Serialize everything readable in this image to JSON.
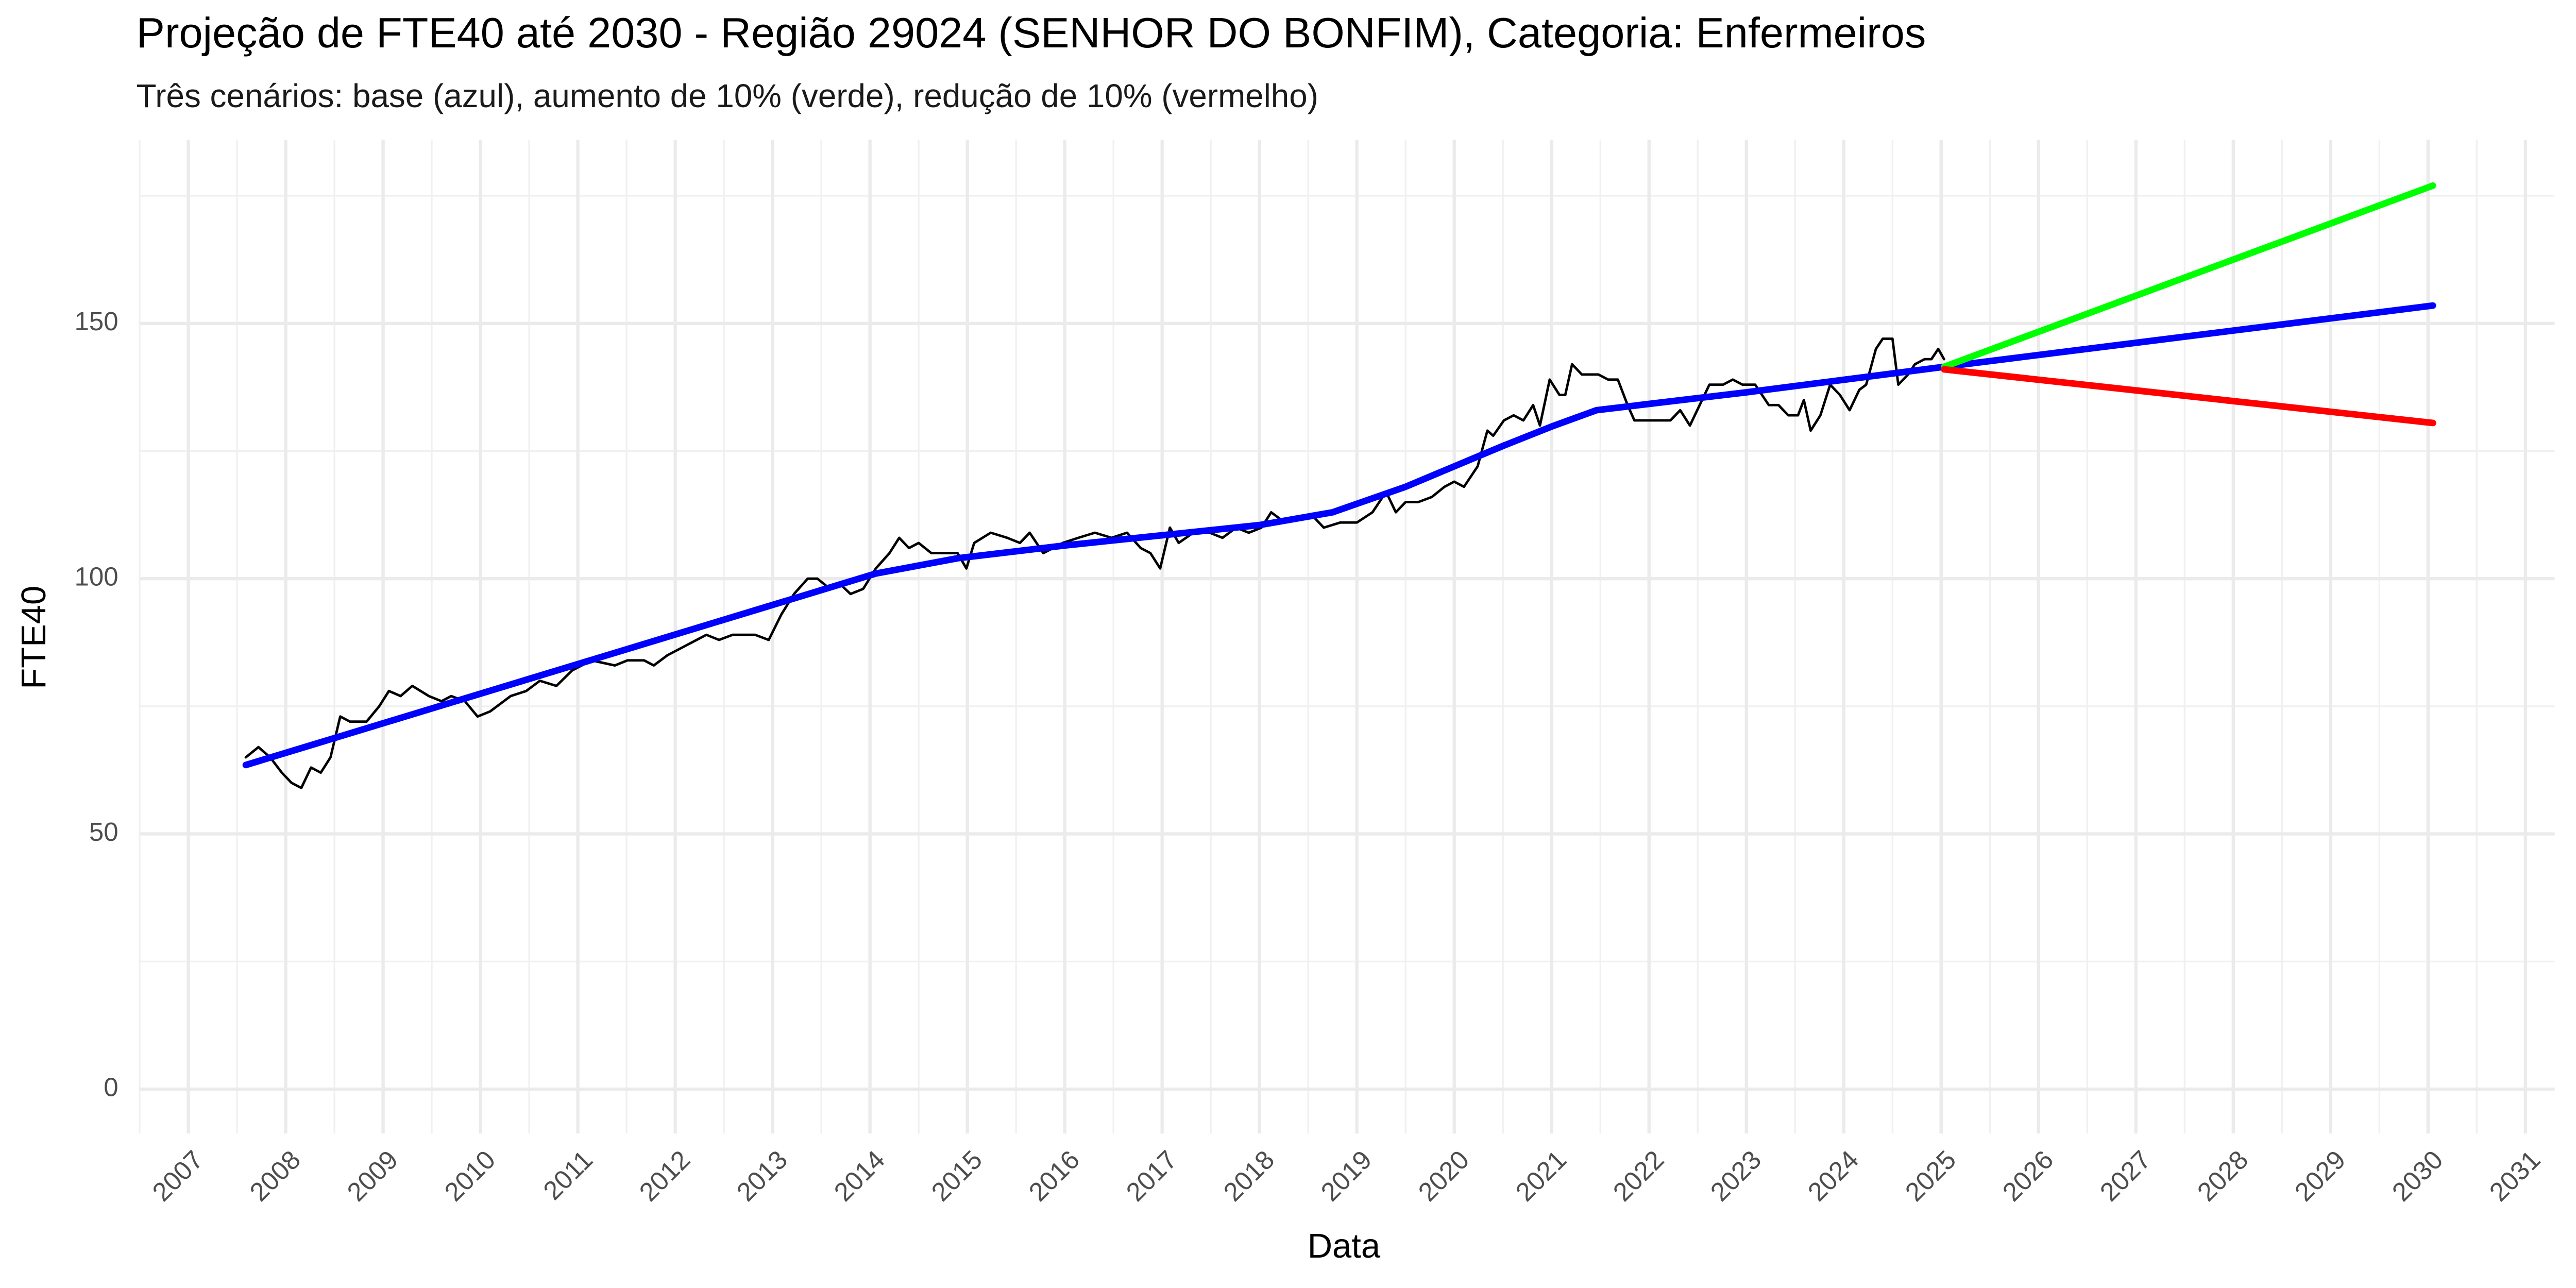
{
  "chart_data": {
    "type": "line",
    "title": "Projeção de FTE40 até 2030 - Região 29024 (SENHOR DO BONFIM), Categoria: Enfermeiros",
    "subtitle": "Três cenários: base (azul), aumento de 10% (verde), redução de 10% (vermelho)",
    "x_label": "Data",
    "y_label": "FTE40",
    "xlim": [
      2006.5,
      2031.3
    ],
    "ylim": [
      -8.7,
      186
    ],
    "xticks": [
      2007,
      2008,
      2009,
      2010,
      2011,
      2012,
      2013,
      2014,
      2015,
      2016,
      2017,
      2018,
      2019,
      2020,
      2021,
      2022,
      2023,
      2024,
      2025,
      2026,
      2027,
      2028,
      2029,
      2030,
      2031
    ],
    "yticks": [
      0,
      50,
      100,
      150
    ],
    "grid": true,
    "series": [
      {
        "color": "#000000",
        "width": 1.5,
        "x": [
          2007.59,
          2007.72,
          2007.84,
          2007.96,
          2008.06,
          2008.16,
          2008.26,
          2008.36,
          2008.46,
          2008.56,
          2008.66,
          2008.83,
          2008.96,
          2009.06,
          2009.18,
          2009.3,
          2009.47,
          2009.6,
          2009.7,
          2009.84,
          2009.97,
          2010.1,
          2010.31,
          2010.47,
          2010.61,
          2010.78,
          2010.94,
          2011.14,
          2011.38,
          2011.51,
          2011.68,
          2011.78,
          2011.92,
          2012.12,
          2012.32,
          2012.45,
          2012.59,
          2012.82,
          2012.96,
          2013.09,
          2013.22,
          2013.36,
          2013.46,
          2013.59,
          2013.69,
          2013.8,
          2013.93,
          2014.06,
          2014.2,
          2014.3,
          2014.4,
          2014.5,
          2014.63,
          2014.77,
          2014.9,
          2014.99,
          2015.07,
          2015.24,
          2015.41,
          2015.54,
          2015.64,
          2015.78,
          2015.98,
          2016.14,
          2016.31,
          2016.48,
          2016.64,
          2016.78,
          2016.88,
          2016.98,
          2017.08,
          2017.17,
          2017.32,
          2017.49,
          2017.62,
          2017.76,
          2017.89,
          2018.02,
          2018.12,
          2018.26,
          2018.43,
          2018.56,
          2018.66,
          2018.83,
          2019.0,
          2019.16,
          2019.3,
          2019.4,
          2019.5,
          2019.63,
          2019.77,
          2019.9,
          2020.0,
          2020.1,
          2020.24,
          2020.34,
          2020.4,
          2020.51,
          2020.61,
          2020.71,
          2020.81,
          2020.88,
          2020.98,
          2021.08,
          2021.14,
          2021.21,
          2021.31,
          2021.48,
          2021.58,
          2021.68,
          2021.78,
          2021.85,
          2022.02,
          2022.22,
          2022.32,
          2022.42,
          2022.52,
          2022.62,
          2022.76,
          2022.86,
          2022.96,
          2023.09,
          2023.23,
          2023.33,
          2023.43,
          2023.53,
          2023.59,
          2023.66,
          2023.76,
          2023.86,
          2023.96,
          2024.06,
          2024.16,
          2024.23,
          2024.33,
          2024.4,
          2024.5,
          2024.56,
          2024.66,
          2024.73,
          2024.83,
          2024.9,
          2024.97,
          2025.03
        ],
        "values": [
          65,
          67,
          65,
          62,
          60,
          59,
          63,
          62,
          65,
          73,
          72,
          72,
          75,
          78,
          77,
          79,
          77,
          76,
          77,
          76,
          73,
          74,
          77,
          78,
          80,
          79,
          82,
          84,
          83,
          84,
          84,
          83,
          85,
          87,
          89,
          88,
          89,
          89,
          88,
          93,
          97,
          100,
          100,
          98,
          99,
          97,
          98,
          102,
          105,
          108,
          106,
          107,
          105,
          105,
          105,
          102,
          107,
          109,
          108,
          107,
          109,
          105,
          107,
          108,
          109,
          108,
          109,
          106,
          105,
          102,
          110,
          107,
          109,
          109,
          108,
          110,
          109,
          110,
          113,
          111,
          112,
          112,
          110,
          111,
          111,
          113,
          117,
          113,
          115,
          115,
          116,
          118,
          119,
          118,
          122,
          129,
          128,
          131,
          132,
          131,
          134,
          130,
          139,
          136,
          136,
          142,
          140,
          140,
          139,
          139,
          134,
          131,
          131,
          131,
          133,
          130,
          134,
          138,
          138,
          139,
          138,
          138,
          134,
          134,
          132,
          132,
          135,
          129,
          132,
          138,
          136,
          133,
          137,
          138,
          145,
          147,
          147,
          138,
          140,
          142,
          143,
          143,
          145,
          143
        ]
      },
      {
        "color": "#0000ff",
        "width": 4,
        "x": [
          2007.59,
          2014.06,
          2014.9,
          2016.0,
          2018.0,
          2018.75,
          2019.5,
          2020.5,
          2021.0,
          2021.46,
          2023.0,
          2025.03,
          2030.05
        ],
        "values": [
          63.5,
          101,
          104,
          106.5,
          110.5,
          113,
          118,
          126,
          129.8,
          133,
          136.5,
          141.5,
          153.5
        ]
      },
      {
        "color": "#00ff00",
        "width": 4,
        "x": [
          2025.03,
          2030.05
        ],
        "values": [
          141.5,
          177
        ]
      },
      {
        "color": "#ff0000",
        "width": 4,
        "x": [
          2025.03,
          2030.05
        ],
        "values": [
          141,
          130.5
        ]
      }
    ]
  }
}
